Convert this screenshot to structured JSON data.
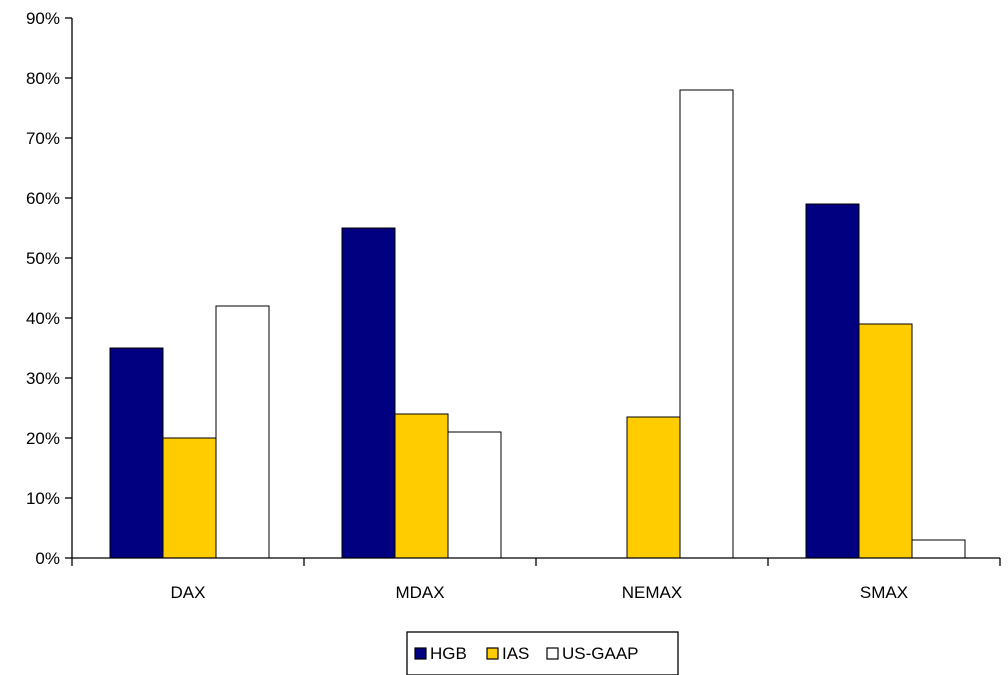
{
  "chart_data": {
    "type": "bar",
    "categories": [
      "DAX",
      "MDAX",
      "NEMAX",
      "SMAX"
    ],
    "series": [
      {
        "name": "HGB",
        "values": [
          35,
          55,
          0,
          59
        ],
        "color": "#000080"
      },
      {
        "name": "IAS",
        "values": [
          20,
          24,
          23.5,
          39
        ],
        "color": "#FFCC00"
      },
      {
        "name": "US-GAAP",
        "values": [
          42,
          21,
          78,
          3
        ],
        "color": "#FFFFFF"
      }
    ],
    "ylim": [
      0,
      90
    ],
    "yticks": [
      {
        "value": 0,
        "label": "0%"
      },
      {
        "value": 10,
        "label": "10%"
      },
      {
        "value": 20,
        "label": "20%"
      },
      {
        "value": 30,
        "label": "30%"
      },
      {
        "value": 40,
        "label": "40%"
      },
      {
        "value": 50,
        "label": "50%"
      },
      {
        "value": 60,
        "label": "60%"
      },
      {
        "value": 70,
        "label": "70%"
      },
      {
        "value": 80,
        "label": "80%"
      },
      {
        "value": 90,
        "label": "90%"
      }
    ],
    "title": "",
    "xlabel": "",
    "ylabel": "",
    "grid": false,
    "legend_position": "bottom"
  }
}
